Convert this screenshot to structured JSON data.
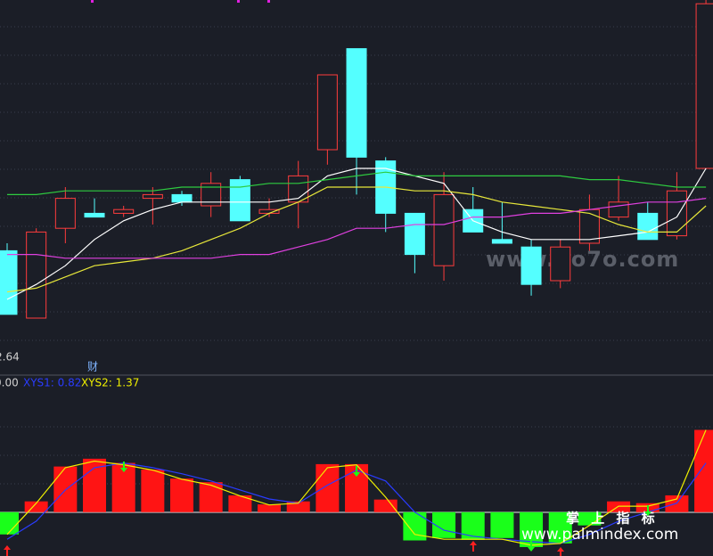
{
  "chart_data": [
    {
      "type": "candlestick",
      "ylim": [
        2.6,
        3.6
      ],
      "up_color": "#ff3c3c",
      "down_color": "#54ffff",
      "open": [
        2.93,
        2.75,
        2.99,
        3.03,
        3.03,
        3.07,
        3.08,
        3.05,
        3.12,
        3.03,
        3.06,
        3.2,
        3.47,
        3.17,
        3.03,
        2.89,
        3.04,
        2.96,
        2.94,
        2.85,
        2.95,
        3.02,
        3.03,
        2.97,
        3.15
      ],
      "high": [
        2.95,
        2.99,
        3.1,
        3.07,
        3.05,
        3.1,
        3.09,
        3.14,
        3.13,
        3.07,
        3.17,
        3.4,
        3.47,
        3.18,
        3.03,
        3.14,
        3.1,
        3.06,
        2.96,
        2.96,
        3.08,
        3.13,
        3.06,
        3.14,
        3.6
      ],
      "low": [
        2.76,
        2.75,
        2.95,
        3.02,
        3.02,
        3.0,
        3.05,
        3.02,
        3.01,
        3.02,
        2.99,
        3.16,
        3.08,
        2.98,
        2.87,
        2.85,
        2.98,
        2.95,
        2.81,
        2.83,
        2.93,
        3.01,
        2.96,
        2.96,
        3.15
      ],
      "close": [
        2.76,
        2.98,
        3.07,
        3.02,
        3.04,
        3.08,
        3.06,
        3.11,
        3.01,
        3.04,
        3.13,
        3.4,
        3.18,
        3.03,
        2.92,
        3.08,
        2.98,
        2.95,
        2.84,
        2.94,
        3.04,
        3.06,
        2.96,
        3.09,
        3.59
      ],
      "series": [
        {
          "color": "#ffffff",
          "values": [
            2.8,
            2.84,
            2.89,
            2.96,
            3.01,
            3.04,
            3.06,
            3.06,
            3.06,
            3.06,
            3.07,
            3.13,
            3.15,
            3.15,
            3.13,
            3.11,
            3.01,
            2.98,
            2.96,
            2.96,
            2.96,
            2.97,
            2.98,
            3.02,
            3.15
          ]
        },
        {
          "color": "#e8e83a",
          "values": [
            2.82,
            2.83,
            2.86,
            2.89,
            2.9,
            2.91,
            2.93,
            2.96,
            2.99,
            3.03,
            3.06,
            3.1,
            3.1,
            3.1,
            3.09,
            3.09,
            3.08,
            3.06,
            3.05,
            3.04,
            3.03,
            3.0,
            2.98,
            2.98,
            3.05
          ]
        },
        {
          "color": "#e040e0",
          "values": [
            2.92,
            2.92,
            2.91,
            2.91,
            2.91,
            2.91,
            2.91,
            2.91,
            2.92,
            2.92,
            2.94,
            2.96,
            2.99,
            2.99,
            3.0,
            3.0,
            3.02,
            3.02,
            3.03,
            3.03,
            3.04,
            3.05,
            3.06,
            3.06,
            3.07
          ]
        },
        {
          "color": "#2ecc40",
          "values": [
            3.08,
            3.08,
            3.09,
            3.09,
            3.09,
            3.09,
            3.1,
            3.1,
            3.1,
            3.11,
            3.11,
            3.12,
            3.13,
            3.14,
            3.13,
            3.13,
            3.13,
            3.13,
            3.13,
            3.13,
            3.12,
            3.12,
            3.11,
            3.1,
            3.1
          ]
        }
      ],
      "low_label": "2.64",
      "annotations": [
        "财",
        "www.6o7o.com"
      ]
    },
    {
      "type": "bar",
      "ylim": [
        -0.67,
        2.0
      ],
      "up_color": "#ff1414",
      "down_color": "#1aff1a",
      "header": "0.00",
      "values": [
        -0.37,
        0.18,
        0.76,
        0.89,
        0.82,
        0.71,
        0.56,
        0.5,
        0.28,
        0.13,
        0.18,
        0.8,
        0.8,
        0.21,
        -0.47,
        -0.43,
        -0.46,
        -0.43,
        -0.58,
        -0.52,
        -0.22,
        0.18,
        0.15,
        0.28,
        1.37
      ],
      "series": [
        {
          "label": "XYS1: 0.82",
          "color": "#2a3cff",
          "values": [
            -0.45,
            -0.15,
            0.37,
            0.74,
            0.82,
            0.74,
            0.64,
            0.52,
            0.37,
            0.22,
            0.15,
            0.45,
            0.7,
            0.52,
            0.0,
            -0.3,
            -0.4,
            -0.45,
            -0.49,
            -0.52,
            -0.37,
            -0.15,
            0.0,
            0.15,
            0.82
          ]
        },
        {
          "label": "XYS2: 1.37",
          "color": "#f0f000",
          "values": [
            -0.37,
            0.15,
            0.74,
            0.85,
            0.79,
            0.7,
            0.55,
            0.45,
            0.27,
            0.12,
            0.15,
            0.74,
            0.79,
            0.25,
            -0.37,
            -0.45,
            -0.45,
            -0.45,
            -0.55,
            -0.52,
            -0.22,
            0.1,
            0.1,
            0.22,
            1.37
          ]
        }
      ],
      "annotations": [
        "掌 上 指 标",
        "www.palmindex.com"
      ]
    }
  ]
}
